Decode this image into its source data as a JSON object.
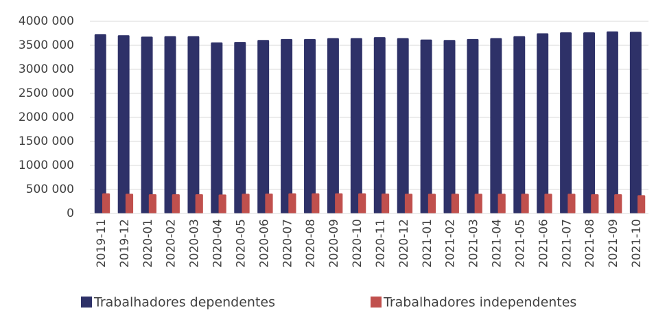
{
  "chart_data": {
    "type": "bar",
    "categories": [
      "2019-11",
      "2019-12",
      "2020-01",
      "2020-02",
      "2020-03",
      "2020-04",
      "2020-05",
      "2020-06",
      "2020-07",
      "2020-08",
      "2020-09",
      "2020-10",
      "2020-11",
      "2020-12",
      "2021-01",
      "2021-02",
      "2021-03",
      "2021-04",
      "2021-05",
      "2021-06",
      "2021-07",
      "2021-08",
      "2021-09",
      "2021-10"
    ],
    "series": [
      {
        "name": "Trabalhadores dependentes",
        "color": "#2e3168",
        "values": [
          3730000,
          3710000,
          3680000,
          3690000,
          3690000,
          3560000,
          3570000,
          3610000,
          3630000,
          3630000,
          3650000,
          3650000,
          3670000,
          3650000,
          3620000,
          3610000,
          3630000,
          3650000,
          3690000,
          3750000,
          3770000,
          3770000,
          3790000,
          3780000
        ]
      },
      {
        "name": "Trabalhadores independentes",
        "color": "#c0504d",
        "values": [
          420000,
          410000,
          400000,
          400000,
          400000,
          395000,
          410000,
          415000,
          420000,
          420000,
          420000,
          420000,
          415000,
          410000,
          410000,
          410000,
          410000,
          410000,
          410000,
          410000,
          410000,
          400000,
          400000,
          380000
        ]
      }
    ],
    "ylim": [
      0,
      4000000
    ],
    "yticks": [
      0,
      {
        "value": 500000,
        "label": "500 000"
      },
      {
        "value": 1000000,
        "label": "1000 000"
      },
      {
        "value": 1500000,
        "label": "1500 000"
      },
      {
        "value": 2000000,
        "label": "2000 000"
      },
      {
        "value": 2500000,
        "label": "2500 000"
      },
      {
        "value": 3000000,
        "label": "3000 000"
      },
      {
        "value": 3500000,
        "label": "3500 000"
      },
      {
        "value": 4000000,
        "label": "4000 000"
      }
    ],
    "grid": true,
    "legend": "bottom"
  }
}
